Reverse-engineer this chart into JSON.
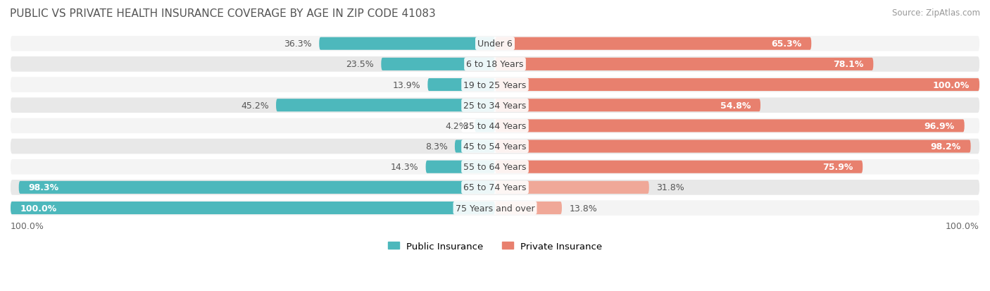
{
  "title": "PUBLIC VS PRIVATE HEALTH INSURANCE COVERAGE BY AGE IN ZIP CODE 41083",
  "source": "Source: ZipAtlas.com",
  "categories": [
    "Under 6",
    "6 to 18 Years",
    "19 to 25 Years",
    "25 to 34 Years",
    "35 to 44 Years",
    "45 to 54 Years",
    "55 to 64 Years",
    "65 to 74 Years",
    "75 Years and over"
  ],
  "public_values": [
    36.3,
    23.5,
    13.9,
    45.2,
    4.2,
    8.3,
    14.3,
    98.3,
    100.0
  ],
  "private_values": [
    65.3,
    78.1,
    100.0,
    54.8,
    96.9,
    98.2,
    75.9,
    31.8,
    13.8
  ],
  "public_color": "#4db8bc",
  "private_color": "#e8806e",
  "private_color_light": "#f0a898",
  "public_label": "Public Insurance",
  "private_label": "Private Insurance",
  "row_bg_color_odd": "#f4f4f4",
  "row_bg_color_even": "#e8e8e8",
  "title_color": "#555555",
  "value_color_dark": "#555555",
  "value_color_white": "#ffffff",
  "label_fontsize": 9.0,
  "title_fontsize": 11.0,
  "source_fontsize": 8.5,
  "max_value": 100.0,
  "figsize": [
    14.06,
    4.14
  ],
  "dpi": 100
}
